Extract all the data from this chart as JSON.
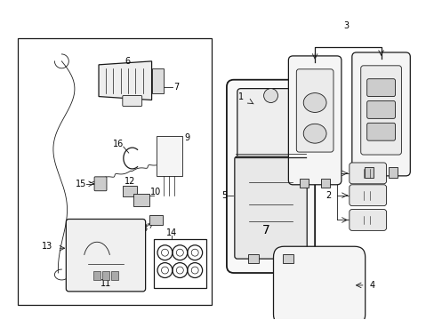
{
  "bg_color": "#ffffff",
  "line_color": "#1a1a1a",
  "label_color": "#000000",
  "figsize": [
    4.89,
    3.6
  ],
  "dpi": 100,
  "lw_thin": 0.6,
  "lw_med": 0.9,
  "lw_thick": 1.3
}
